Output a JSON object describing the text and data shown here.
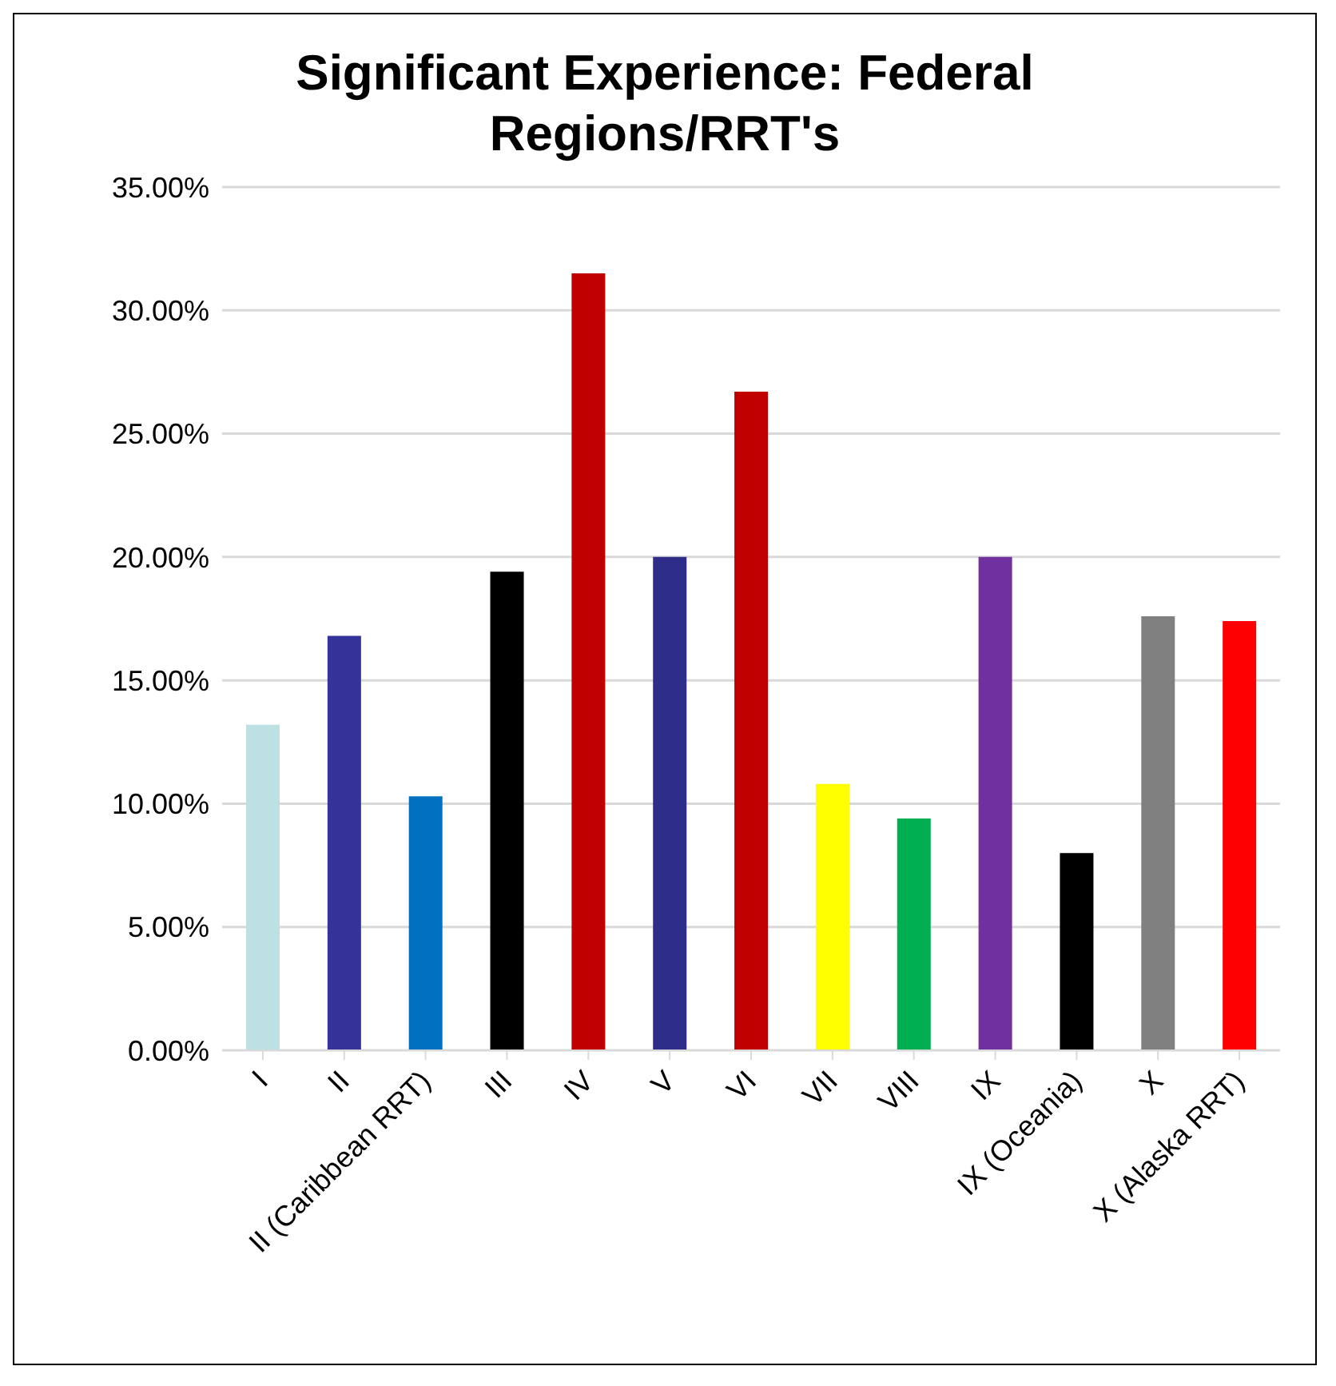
{
  "chart_data": {
    "type": "bar",
    "title": "Significant Experience: Federal Regions/RRT's",
    "categories": [
      "I",
      "II",
      "II (Caribbean RRT)",
      "III",
      "IV",
      "V",
      "VI",
      "VII",
      "VIII",
      "IX",
      "IX (Oceania)",
      "X",
      "X (Alaska RRT)"
    ],
    "values": [
      13.2,
      16.8,
      10.3,
      19.4,
      31.5,
      20.0,
      26.7,
      10.8,
      9.4,
      20.0,
      8.0,
      17.6,
      17.4
    ],
    "colors": [
      "#bde0e3",
      "#333399",
      "#0070c0",
      "#000000",
      "#c00000",
      "#2e2e8a",
      "#c00000",
      "#ffff00",
      "#00b050",
      "#7030a0",
      "#000000",
      "#808080",
      "#ff0000"
    ],
    "ylim": [
      0,
      35
    ],
    "yticks": [
      {
        "value": 0,
        "label": "0.00%"
      },
      {
        "value": 5,
        "label": "5.00%"
      },
      {
        "value": 10,
        "label": "10.00%"
      },
      {
        "value": 15,
        "label": "15.00%"
      },
      {
        "value": 20,
        "label": "20.00%"
      },
      {
        "value": 25,
        "label": "25.00%"
      },
      {
        "value": 30,
        "label": "30.00%"
      },
      {
        "value": 35,
        "label": "35.00%"
      }
    ],
    "grid": "y",
    "legend": false
  }
}
